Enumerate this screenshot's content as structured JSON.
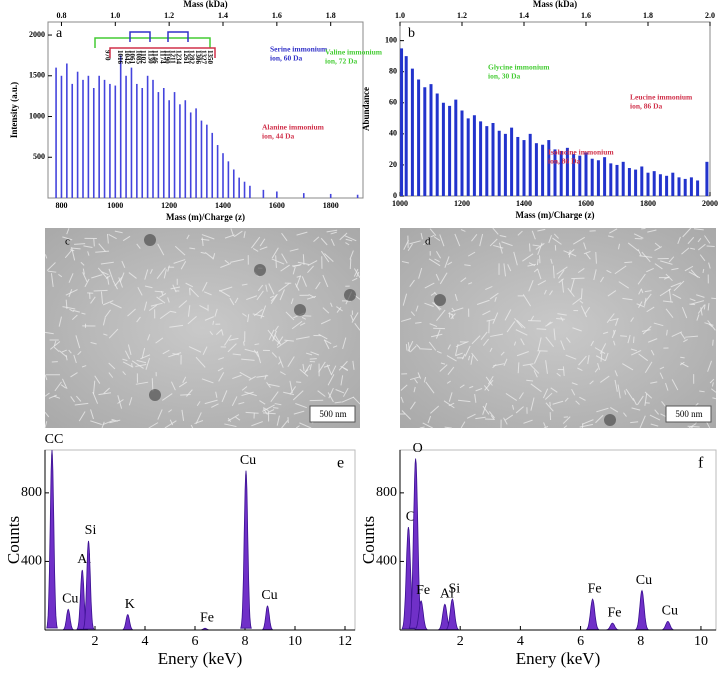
{
  "chart_data": [
    {
      "type": "spectrum",
      "panel": "a",
      "x_label": "Mass (m)/Charge (z)",
      "x2_label": "Mass (kDa)",
      "y_label": "Intensity (a.u.)",
      "xlim": [
        750,
        1920
      ],
      "xticks": [
        800,
        1000,
        1200,
        1400,
        1600,
        1800
      ],
      "x2lim": [
        0.75,
        1.92
      ],
      "x2ticks": [
        0.8,
        {
          "value": 1.0,
          "label": "1.0"
        },
        1.2,
        1.4,
        1.6,
        1.8
      ],
      "ylim": [
        0,
        2160
      ],
      "yticks": [
        500,
        1000,
        1500,
        2000
      ],
      "color": "#4444dd",
      "x": [
        780,
        800,
        820,
        840,
        860,
        880,
        900,
        920,
        940,
        960,
        980,
        1000,
        1020,
        1040,
        1060,
        1080,
        1100,
        1120,
        1140,
        1160,
        1180,
        1200,
        1220,
        1240,
        1260,
        1280,
        1300,
        1320,
        1340,
        1360,
        1380,
        1400,
        1420,
        1440,
        1460,
        1480,
        1500,
        1550,
        1600,
        1700,
        1800,
        1900
      ],
      "values": [
        1600,
        1500,
        1650,
        1400,
        1550,
        1450,
        1500,
        1350,
        1500,
        1450,
        1400,
        1380,
        1750,
        1500,
        1600,
        1400,
        1350,
        1500,
        1450,
        1300,
        1350,
        1200,
        1300,
        1150,
        1200,
        1050,
        1100,
        950,
        900,
        800,
        650,
        550,
        450,
        350,
        250,
        200,
        150,
        100,
        80,
        60,
        50,
        40
      ],
      "labeled_peaks": [
        970,
        1016,
        1042,
        1061,
        1085,
        1102,
        1130,
        1146,
        1174,
        1190,
        1211,
        1234,
        1261,
        1282,
        1306,
        1327,
        1350
      ],
      "annotations": [
        {
          "lines": [
            "Serine immonium",
            "ion, 60 Da"
          ],
          "color": "#3030c8"
        },
        {
          "lines": [
            "Valine immonium",
            "ion, 72 Da"
          ],
          "color": "#44cc33"
        },
        {
          "lines": [
            "Alanine immonium",
            "ion, 44 Da"
          ],
          "color": "#d0304a"
        }
      ]
    },
    {
      "type": "spectrum",
      "panel": "b",
      "x_label": "Mass (m)/Charge (z)",
      "x2_label": "Mass (kDa)",
      "y_label": "Abundance",
      "xlim": [
        1000,
        2000
      ],
      "xticks": [
        1000,
        1200,
        1400,
        1600,
        1800,
        2000
      ],
      "x2lim": [
        1.0,
        2.0
      ],
      "x2ticks": [
        {
          "value": 1.0,
          "label": "1.0"
        },
        1.2,
        1.4,
        1.6,
        1.8,
        {
          "value": 2.0,
          "label": "2.0"
        }
      ],
      "ylim": [
        0,
        112
      ],
      "yticks": [
        0,
        20,
        40,
        60,
        80,
        100
      ],
      "color": "#2233cc",
      "x": [
        1005,
        1020,
        1040,
        1060,
        1080,
        1100,
        1120,
        1140,
        1160,
        1180,
        1200,
        1220,
        1240,
        1260,
        1280,
        1300,
        1320,
        1340,
        1360,
        1380,
        1400,
        1420,
        1440,
        1460,
        1480,
        1500,
        1520,
        1540,
        1560,
        1580,
        1600,
        1620,
        1640,
        1660,
        1680,
        1700,
        1720,
        1740,
        1760,
        1780,
        1800,
        1820,
        1840,
        1860,
        1880,
        1900,
        1920,
        1940,
        1960,
        1990
      ],
      "values": [
        95,
        90,
        82,
        75,
        70,
        72,
        66,
        60,
        58,
        62,
        55,
        50,
        52,
        48,
        45,
        47,
        42,
        40,
        44,
        38,
        36,
        40,
        34,
        33,
        36,
        30,
        29,
        31,
        27,
        26,
        28,
        24,
        23,
        25,
        21,
        20,
        22,
        18,
        17,
        19,
        15,
        16,
        14,
        13,
        15,
        12,
        11,
        12,
        10,
        22
      ],
      "annotations": [
        {
          "lines": [
            "Glycine immonium",
            "ion, 30 Da"
          ],
          "color": "#44cc33"
        },
        {
          "lines": [
            "Isolucine immonium",
            "ion, 86 Da"
          ],
          "color": "#d0304a"
        },
        {
          "lines": [
            "Leucine immonium",
            "ion, 86 Da"
          ],
          "color": "#d0304a"
        }
      ]
    },
    {
      "type": "eds",
      "panel": "e",
      "x_label": "Enery (keV)",
      "y_label": "Counts",
      "xlim": [
        0,
        12.4
      ],
      "xticks": [
        2,
        4,
        6,
        8,
        10,
        12
      ],
      "ylim": [
        0,
        1050
      ],
      "yticks": [
        400,
        800
      ],
      "color": "#7030c8",
      "peak_x": [
        0.28,
        0.93,
        1.49,
        1.74,
        3.31,
        6.4,
        8.04,
        8.9
      ],
      "values": [
        1050,
        120,
        350,
        520,
        90,
        10,
        930,
        140
      ],
      "peak_labels": [
        "CC",
        "Cu",
        "Al",
        "Si",
        "K",
        "Fe",
        "Cu",
        "Cu"
      ]
    },
    {
      "type": "eds",
      "panel": "f",
      "x_label": "Enery (keV)",
      "y_label": "Counts",
      "xlim": [
        0,
        10.5
      ],
      "xticks": [
        2,
        4,
        6,
        8,
        10
      ],
      "ylim": [
        0,
        1050
      ],
      "yticks": [
        400,
        800
      ],
      "color": "#7030c8",
      "peak_x": [
        0.28,
        0.52,
        0.7,
        1.49,
        1.74,
        6.4,
        7.06,
        8.04,
        8.9
      ],
      "values": [
        600,
        1000,
        170,
        150,
        180,
        180,
        40,
        230,
        50
      ],
      "peak_labels": [
        "C",
        "O",
        "Fe",
        "Al",
        "Si",
        "Fe",
        "Fe",
        "Cu",
        "Cu"
      ]
    }
  ],
  "images": [
    {
      "panel": "c",
      "scale_bar": "500 nm"
    },
    {
      "panel": "d",
      "scale_bar": "500 nm"
    }
  ]
}
